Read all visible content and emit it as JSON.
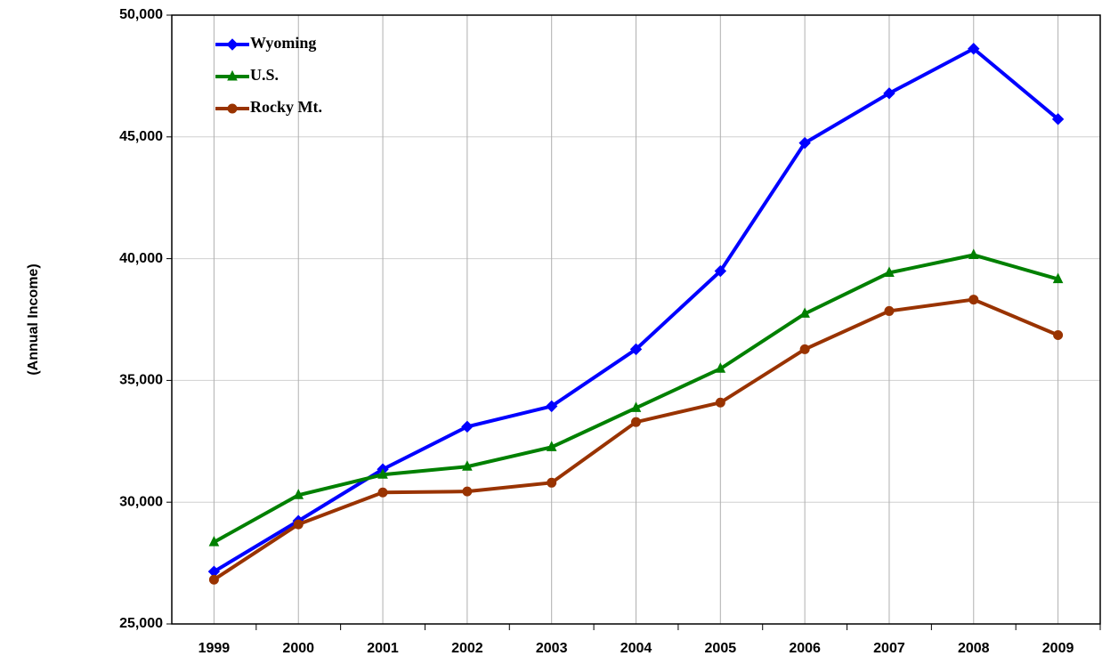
{
  "chart_data": {
    "type": "line",
    "y_label": "(Annual Income)",
    "categories": [
      "1999",
      "2000",
      "2001",
      "2002",
      "2003",
      "2004",
      "2005",
      "2006",
      "2007",
      "2008",
      "2009"
    ],
    "series": [
      {
        "name": "Wyoming",
        "color": "#0000ff",
        "marker": "diamond",
        "values": [
          27150,
          29230,
          31350,
          33100,
          33940,
          36280,
          39490,
          44750,
          46790,
          48620,
          45730
        ]
      },
      {
        "name": "U.S.",
        "color": "#008000",
        "marker": "triangle",
        "values": [
          28360,
          30290,
          31130,
          31460,
          32260,
          33870,
          35480,
          37740,
          39420,
          40150,
          39160
        ]
      },
      {
        "name": "Rocky Mt.",
        "color": "#993300",
        "marker": "circle",
        "values": [
          26820,
          29090,
          30400,
          30440,
          30800,
          33290,
          34090,
          36280,
          37850,
          38320,
          36860
        ]
      }
    ],
    "ylim": [
      25000,
      50000
    ],
    "yticks": [
      {
        "value": 25000,
        "label": "25,000"
      },
      {
        "value": 30000,
        "label": "30,000"
      },
      {
        "value": 35000,
        "label": "35,000"
      },
      {
        "value": 40000,
        "label": "40,000"
      },
      {
        "value": 45000,
        "label": "45,000"
      },
      {
        "value": 50000,
        "label": "50,000"
      }
    ],
    "grid": true,
    "legend": "upper left"
  }
}
